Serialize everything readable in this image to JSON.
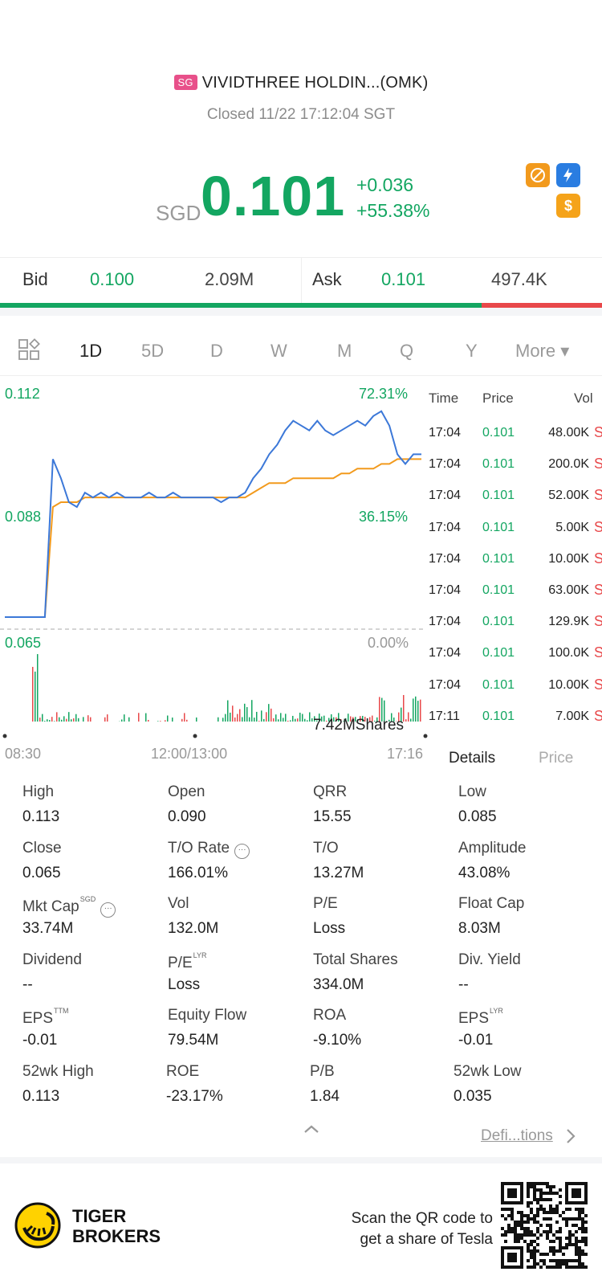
{
  "header": {
    "market_badge": "SG",
    "stock_name": "VIVIDTHREE HOLDIN...(OMK)",
    "status": "Closed 11/22 17:12:04 SGT",
    "currency": "SGD",
    "price": "0.101",
    "change_abs": "+0.036",
    "change_pct": "+55.38%",
    "badge_dollar": "$",
    "colors": {
      "up": "#13a661",
      "down": "#e8484a",
      "accent_blue": "#2a7de1",
      "badge_orange": "#f29a1d"
    }
  },
  "bidask": {
    "bid_label": "Bid",
    "bid_price": "0.100",
    "bid_size": "2.09M",
    "ask_label": "Ask",
    "ask_price": "0.101",
    "ask_size": "497.4K",
    "bid_ratio": 0.8
  },
  "tabs": {
    "items": [
      "1D",
      "5D",
      "D",
      "W",
      "M",
      "Q",
      "Y"
    ],
    "active": "1D",
    "more_label": "More ▾"
  },
  "chart": {
    "y_high": "0.112",
    "y_mid": "0.088",
    "y_low": "0.065",
    "pct_high": "72.31%",
    "pct_mid": "36.15%",
    "pct_low": "0.00%",
    "volume_label": "7.42MShares",
    "x_start": "08:30",
    "x_mid": "12:00/13:00",
    "x_end": "17:16"
  },
  "chart_data": {
    "type": "line",
    "ylim": [
      0.065,
      0.112
    ],
    "series": [
      {
        "values": [
          0.065,
          0.065,
          0.065,
          0.065,
          0.065,
          0.065,
          0.098,
          0.094,
          0.089,
          0.088,
          0.091,
          0.09,
          0.091,
          0.09,
          0.091,
          0.09,
          0.09,
          0.09,
          0.091,
          0.09,
          0.09,
          0.091,
          0.09,
          0.09,
          0.09,
          0.09,
          0.09,
          0.089,
          0.09,
          0.09,
          0.091,
          0.094,
          0.096,
          0.099,
          0.101,
          0.104,
          0.106,
          0.105,
          0.104,
          0.106,
          0.104,
          0.103,
          0.104,
          0.105,
          0.106,
          0.105,
          0.107,
          0.108,
          0.105,
          0.099,
          0.097,
          0.099,
          0.099
        ]
      },
      {
        "values": [
          0.065,
          0.065,
          0.065,
          0.065,
          0.065,
          0.065,
          0.088,
          0.089,
          0.089,
          0.089,
          0.09,
          0.09,
          0.09,
          0.09,
          0.09,
          0.09,
          0.09,
          0.09,
          0.09,
          0.09,
          0.09,
          0.09,
          0.09,
          0.09,
          0.09,
          0.09,
          0.09,
          0.09,
          0.09,
          0.09,
          0.09,
          0.091,
          0.092,
          0.093,
          0.093,
          0.093,
          0.094,
          0.094,
          0.094,
          0.094,
          0.094,
          0.094,
          0.095,
          0.095,
          0.096,
          0.096,
          0.096,
          0.097,
          0.097,
          0.098,
          0.098,
          0.098,
          0.098
        ]
      }
    ]
  },
  "trades": {
    "headers": {
      "time": "Time",
      "price": "Price",
      "vol": "Vol"
    },
    "rows": [
      {
        "time": "17:04",
        "price": "0.101",
        "vol": "48.00K",
        "side": "S"
      },
      {
        "time": "17:04",
        "price": "0.101",
        "vol": "200.0K",
        "side": "S"
      },
      {
        "time": "17:04",
        "price": "0.101",
        "vol": "52.00K",
        "side": "S"
      },
      {
        "time": "17:04",
        "price": "0.101",
        "vol": "5.00K",
        "side": "S"
      },
      {
        "time": "17:04",
        "price": "0.101",
        "vol": "10.00K",
        "side": "S"
      },
      {
        "time": "17:04",
        "price": "0.101",
        "vol": "63.00K",
        "side": "S"
      },
      {
        "time": "17:04",
        "price": "0.101",
        "vol": "129.9K",
        "side": "S"
      },
      {
        "time": "17:04",
        "price": "0.101",
        "vol": "100.0K",
        "side": "S"
      },
      {
        "time": "17:04",
        "price": "0.101",
        "vol": "10.00K",
        "side": "S"
      },
      {
        "time": "17:11",
        "price": "0.101",
        "vol": "7.00K",
        "side": "S"
      }
    ],
    "tab_details": "Details",
    "tab_price": "Price"
  },
  "stats": {
    "rows": [
      [
        {
          "label": "High",
          "value": "0.113"
        },
        {
          "label": "Open",
          "value": "0.090"
        },
        {
          "label": "QRR",
          "value": "15.55"
        },
        {
          "label": "Low",
          "value": "0.085"
        }
      ],
      [
        {
          "label": "Close",
          "value": "0.065"
        },
        {
          "label": "T/O Rate",
          "value": "166.01%"
        },
        {
          "label": "T/O",
          "value": "13.27M"
        },
        {
          "label": "Amplitude",
          "value": "43.08%"
        }
      ],
      [
        {
          "label": "Mkt Cap",
          "sup": "SGD",
          "value": "33.74M"
        },
        {
          "label": "Vol",
          "value": "132.0M"
        },
        {
          "label": "P/E",
          "value": "Loss"
        },
        {
          "label": "Float Cap",
          "value": "8.03M"
        }
      ],
      [
        {
          "label": "Dividend",
          "value": "--"
        },
        {
          "label": "P/E",
          "sup": "LYR",
          "value": "Loss"
        },
        {
          "label": "Total Shares",
          "value": "334.0M"
        },
        {
          "label": "Div. Yield",
          "value": "--"
        }
      ],
      [
        {
          "label": "EPS",
          "sup": "TTM",
          "value": "-0.01"
        },
        {
          "label": "Equity Flow",
          "value": "79.54M"
        },
        {
          "label": "ROA",
          "value": "-9.10%"
        },
        {
          "label": "EPS",
          "sup": "LYR",
          "value": "-0.01"
        }
      ],
      [
        {
          "label": "52wk High",
          "value": "0.113"
        },
        {
          "label": "ROE",
          "value": "-23.17%"
        },
        {
          "label": "P/B",
          "value": "1.84"
        },
        {
          "label": "52wk Low",
          "value": "0.035"
        }
      ]
    ],
    "definitions_link": "Defi...tions"
  },
  "footer": {
    "brand_line1": "TIGER",
    "brand_line2": "BROKERS",
    "promo_line1": "Scan the QR code to",
    "promo_line2": "get a share of Tesla"
  }
}
